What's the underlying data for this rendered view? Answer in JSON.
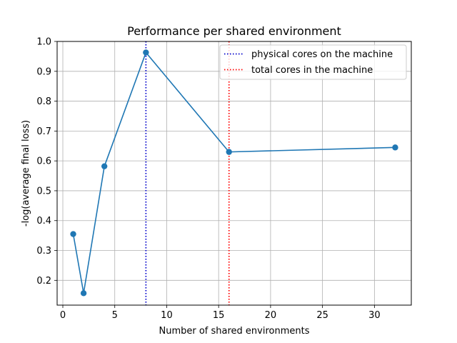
{
  "chart_data": {
    "type": "line",
    "title": "Performance per shared environment",
    "xlabel": "Number of shared environments",
    "ylabel": "-log(average final loss)",
    "xlim": [
      -0.55,
      33.55
    ],
    "ylim": [
      0.117,
      1.0
    ],
    "xticks": [
      0,
      5,
      10,
      15,
      20,
      25,
      30
    ],
    "yticks": [
      0.2,
      0.3,
      0.4,
      0.5,
      0.6,
      0.7,
      0.8,
      0.9,
      1.0
    ],
    "ytick_labels": [
      "0.2",
      "0.3",
      "0.4",
      "0.5",
      "0.6",
      "0.7",
      "0.8",
      "0.9",
      "1.0"
    ],
    "grid": true,
    "legend_position": "top-right",
    "series": [
      {
        "color": "#1f77b4",
        "marker": "circle",
        "x": [
          1,
          2,
          4,
          8,
          16,
          32
        ],
        "y": [
          0.355,
          0.157,
          0.582,
          0.963,
          0.63,
          0.645
        ]
      }
    ],
    "vlines": [
      {
        "x": 8,
        "color": "#0000cc",
        "label": "physical cores on the machine"
      },
      {
        "x": 16,
        "color": "#ff0000",
        "label": "total cores in the machine"
      }
    ]
  }
}
